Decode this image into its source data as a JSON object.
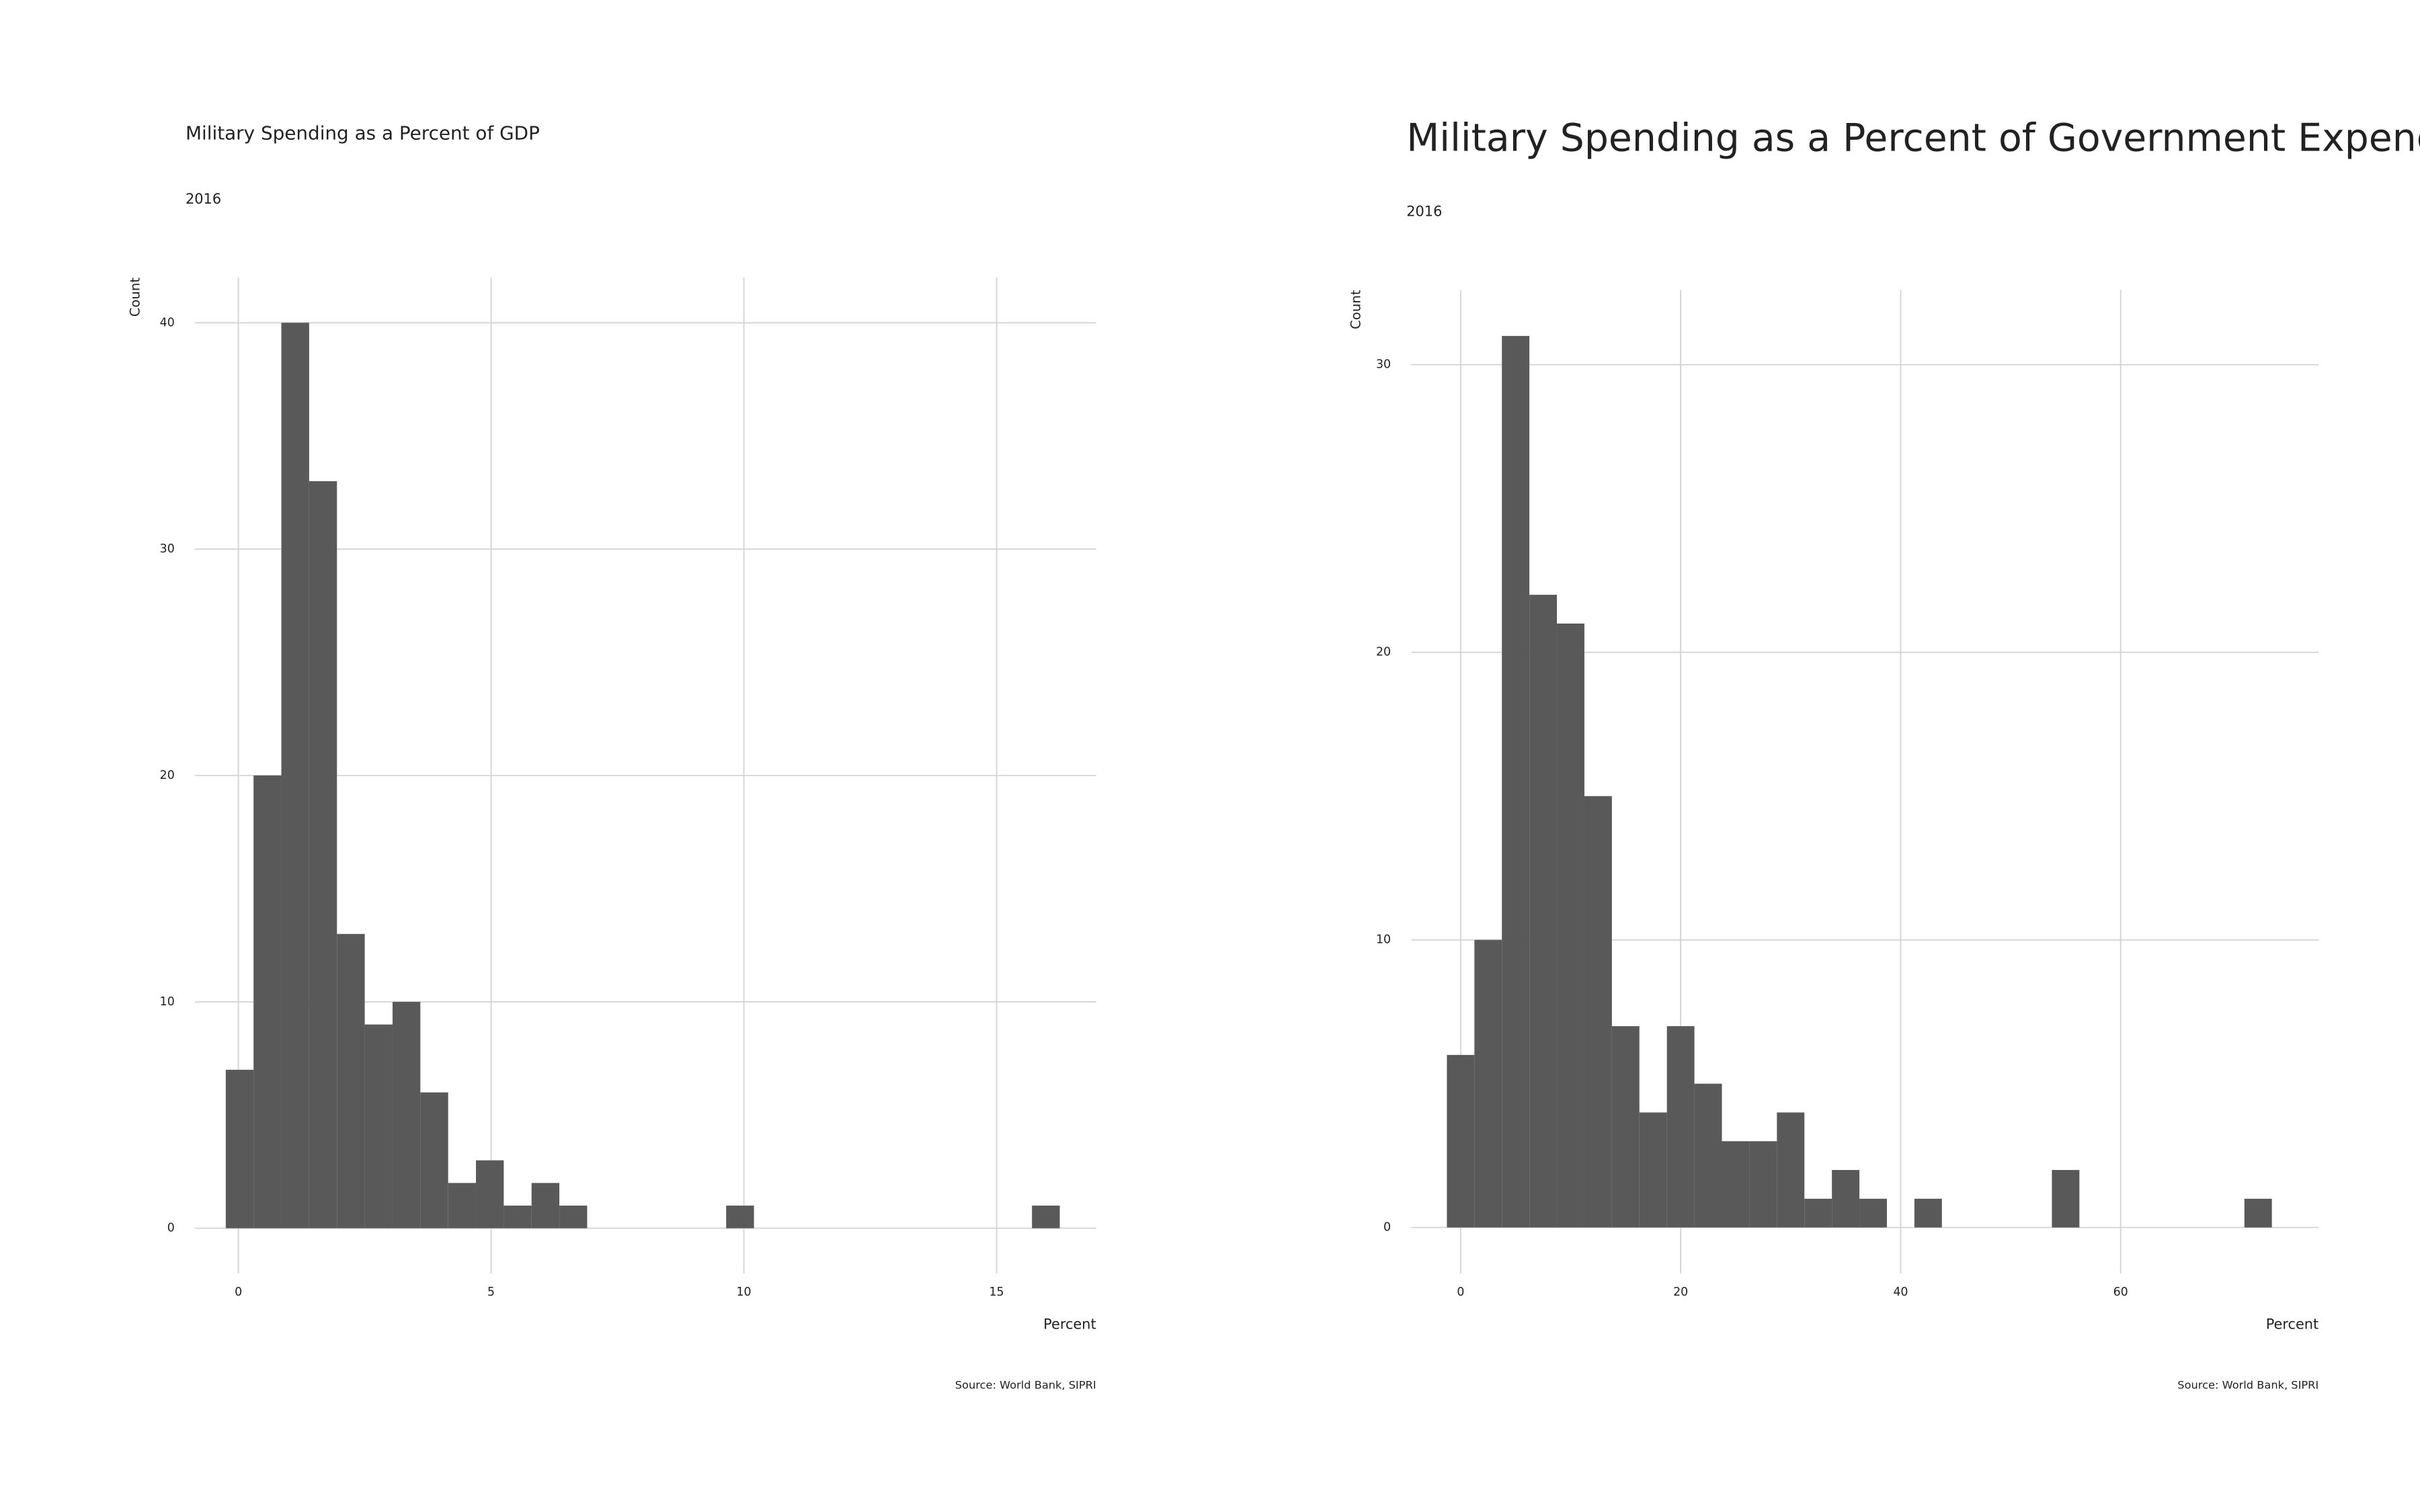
{
  "chart_data": [
    {
      "type": "histogram",
      "title": "Military Spending as a Percent of GDP",
      "subtitle": "2016",
      "x_label": "Percent",
      "y_label": "Count",
      "caption": "Source: World Bank, SIPRI",
      "bins": [
        -0.25,
        0.3,
        0.85,
        1.4,
        1.95,
        2.5,
        3.05,
        3.6,
        4.15,
        4.7,
        5.25,
        5.8,
        6.35,
        6.9,
        7.45,
        8,
        8.55,
        9.1,
        9.65,
        10.2,
        10.75,
        11.3,
        11.85,
        12.4,
        12.95,
        13.5,
        14.05,
        14.6,
        15.15,
        15.7,
        16.25
      ],
      "values": [
        7,
        20,
        40,
        33,
        13,
        9,
        10,
        6,
        2,
        3,
        1,
        2,
        1,
        0,
        0,
        0,
        0,
        0,
        1,
        0,
        0,
        0,
        0,
        0,
        0,
        0,
        0,
        0,
        0,
        1
      ],
      "color": "#595959",
      "xlim": [
        -0.86,
        16.97
      ],
      "ylim": [
        -2,
        42
      ],
      "xticks": [
        0,
        5,
        10,
        15
      ],
      "yticks": [
        0,
        10,
        20,
        30,
        40
      ],
      "grid": true
    },
    {
      "type": "histogram",
      "title": "Military Spending as a Percent of Government Expenditures",
      "subtitle": "2016",
      "x_label": "Percent",
      "y_label": "Count",
      "caption": "Source: World Bank, SIPRI",
      "bins": [
        -1.25,
        1.25,
        3.75,
        6.25,
        8.75,
        11.25,
        13.75,
        16.25,
        18.75,
        21.25,
        23.75,
        26.25,
        28.75,
        31.25,
        33.75,
        36.25,
        38.75,
        41.25,
        43.75,
        46.25,
        48.75,
        51.25,
        53.75,
        56.25,
        58.75,
        61.25,
        63.75,
        66.25,
        68.75,
        71.25,
        73.75
      ],
      "values": [
        6,
        10,
        31,
        22,
        21,
        15,
        7,
        4,
        7,
        5,
        3,
        3,
        4,
        1,
        2,
        1,
        0,
        1,
        0,
        0,
        0,
        0,
        2,
        0,
        0,
        0,
        0,
        0,
        0,
        1
      ],
      "color": "#595959",
      "xlim": [
        -4.5,
        78
      ],
      "ylim": [
        -1.6,
        32.6
      ],
      "xticks": [
        0,
        20,
        40,
        60
      ],
      "yticks": [
        0,
        10,
        20,
        30
      ],
      "grid": true
    }
  ]
}
